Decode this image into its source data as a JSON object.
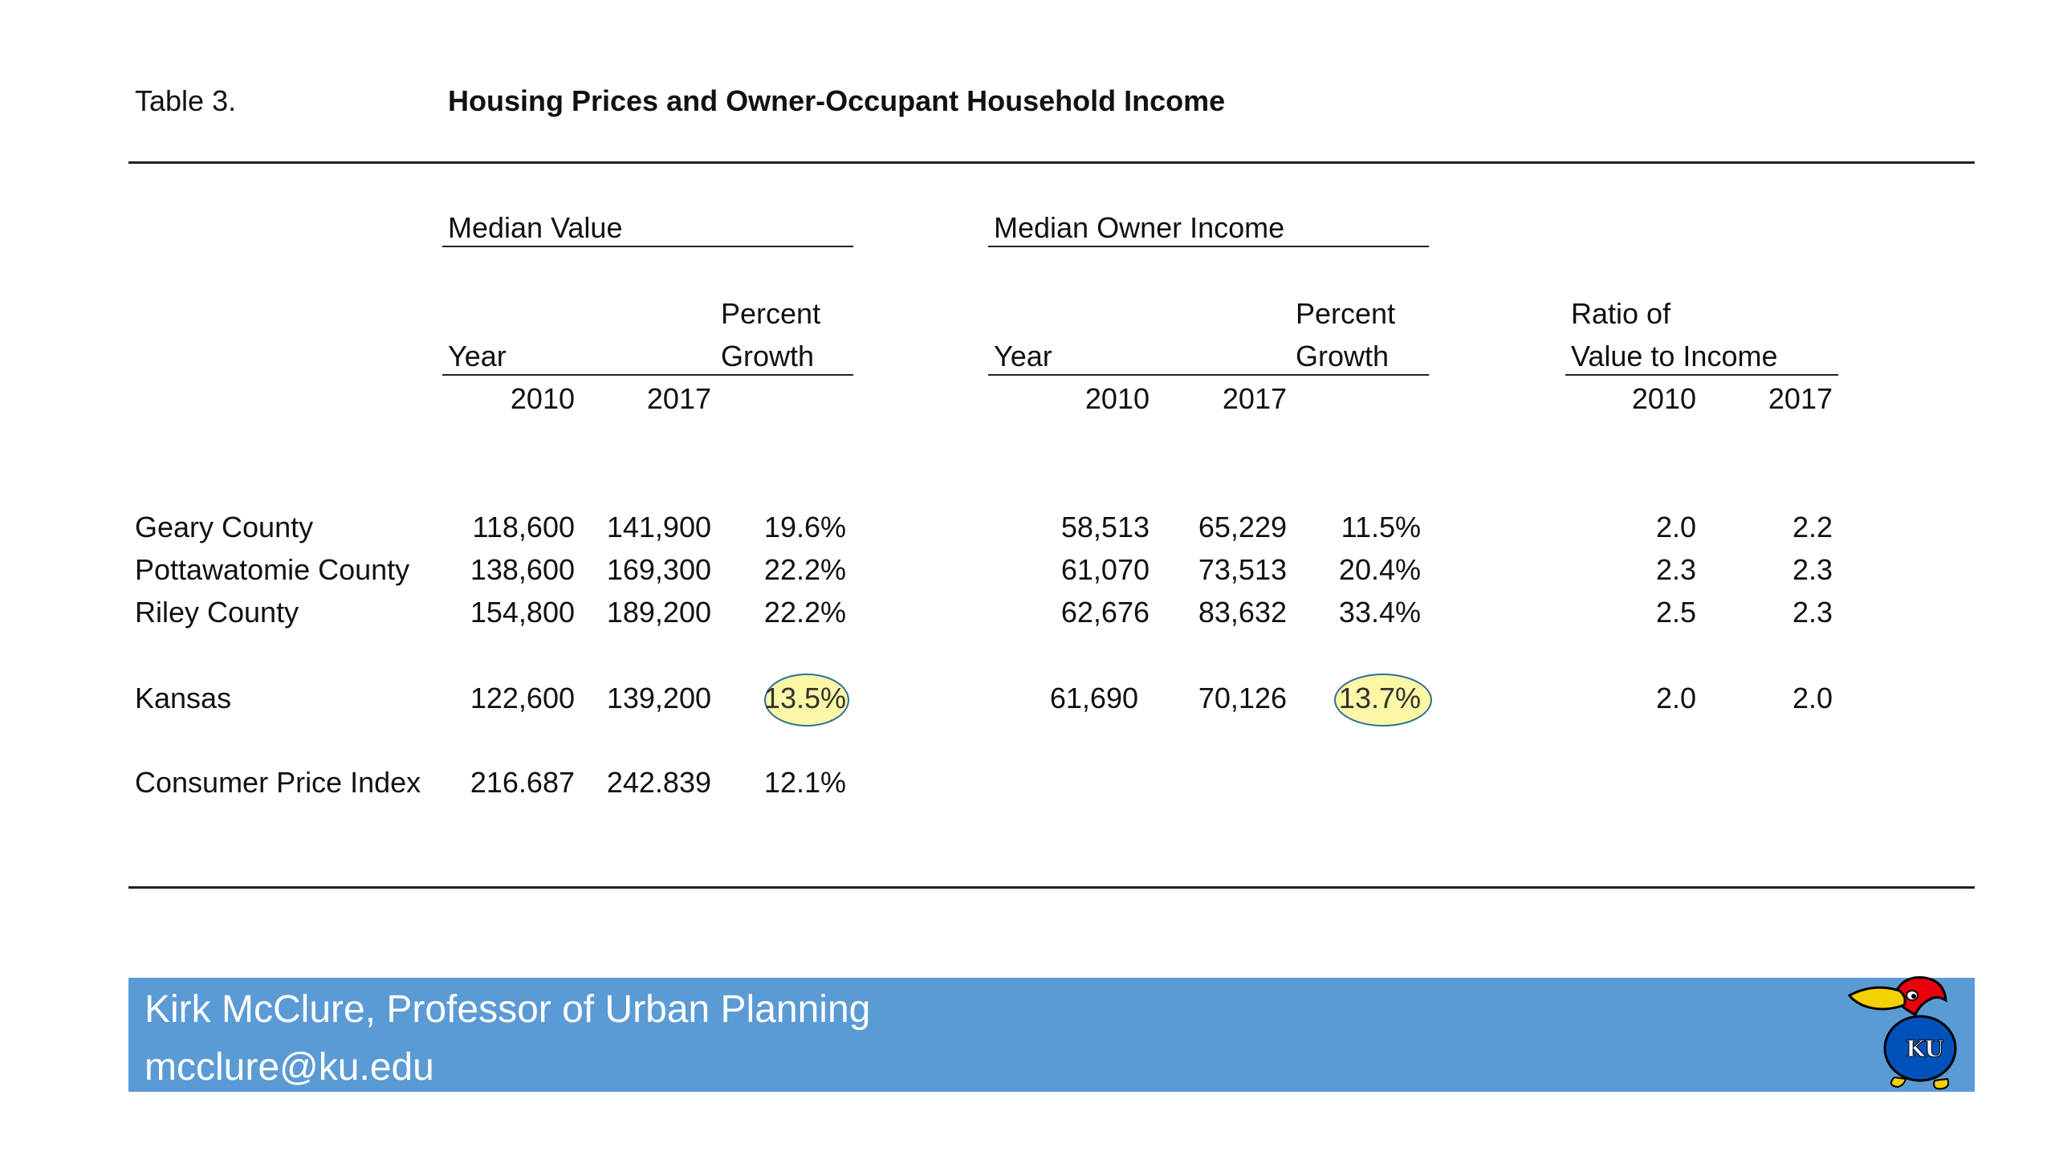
{
  "table_label": "Table 3.",
  "title": "Housing Prices and Owner-Occupant Household Income",
  "groups": {
    "median_value": "Median Value",
    "median_owner_income": "Median Owner Income",
    "ratio_line1": "Ratio of",
    "ratio_line2": "Value to Income"
  },
  "subheaders": {
    "year": "Year",
    "percent": "Percent",
    "growth": "Growth",
    "y2010": "2010",
    "y2017": "2017"
  },
  "rows": [
    {
      "name": "Geary County",
      "v2010": "118,600",
      "v2017": "141,900",
      "vg": "19.6%",
      "i2010": "58,513",
      "i2017": "65,229",
      "ig": "11.5%",
      "r2010": "2.0",
      "r2017": "2.2"
    },
    {
      "name": "Pottawatomie County",
      "v2010": "138,600",
      "v2017": "169,300",
      "vg": "22.2%",
      "i2010": "61,070",
      "i2017": "73,513",
      "ig": "20.4%",
      "r2010": "2.3",
      "r2017": "2.3"
    },
    {
      "name": "Riley County",
      "v2010": "154,800",
      "v2017": "189,200",
      "vg": "22.2%",
      "i2010": "62,676",
      "i2017": "83,632",
      "ig": "33.4%",
      "r2010": "2.5",
      "r2017": "2.3"
    },
    {
      "name": "Kansas",
      "v2010": "122,600",
      "v2017": "139,200",
      "vg": "13.5%",
      "i2010": "61,690",
      "i2017": "70,126",
      "ig": "13.7%",
      "r2010": "2.0",
      "r2017": "2.0"
    },
    {
      "name": "Consumer Price Index",
      "v2010": "216.687",
      "v2017": "242.839",
      "vg": "12.1%"
    }
  ],
  "footer": {
    "author": "Kirk McClure, Professor of Urban Planning",
    "email": "mcclure@ku.edu"
  },
  "logo": {
    "text": "KU",
    "icon": "jayhawk-mascot-icon"
  },
  "colors": {
    "footer_bg": "#5b9bd5",
    "highlight_fill": "#fbf7a6",
    "highlight_border": "#2f6f99"
  }
}
